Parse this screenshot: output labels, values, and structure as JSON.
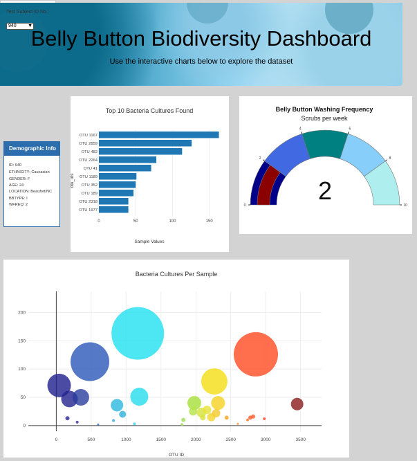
{
  "header": {
    "title": "Belly Button Biodiversity Dashboard",
    "subtitle": "Use the interactive charts below to explore the dataset"
  },
  "selector": {
    "label": "Test Subject ID No.:",
    "value": "940"
  },
  "demographic": {
    "title": "Demographic Info",
    "lines": [
      "ID: 940",
      "ETHNICITY: Caucasian",
      "GENDER: F",
      "AGE: 24",
      "LOCATION: Beaufort/NC",
      "BBTYPE: I",
      "WFREQ: 2"
    ]
  },
  "colors": {
    "panel_blue": "#2b6dad",
    "bar_blue": "#1f77b4"
  },
  "chart_data": [
    {
      "type": "bar",
      "title": "Top 10 Bacteria Cultures Found",
      "xlabel": "Sample Values",
      "ylabel": "otu_ids",
      "orientation": "horizontal",
      "categories": [
        "OTU 1167",
        "OTU 2859",
        "OTU 482",
        "OTU 2264",
        "OTU 41",
        "OTU 1189",
        "OTU 352",
        "OTU 189",
        "OTU 2318",
        "OTU 1977"
      ],
      "values": [
        163,
        126,
        113,
        78,
        71,
        51,
        50,
        47,
        40,
        40
      ],
      "xticks": [
        "0",
        "50",
        "100",
        "150"
      ],
      "xlim": [
        0,
        170
      ]
    },
    {
      "type": "gauge",
      "title": "Belly Button Washing Frequency",
      "subtitle": "Scrubs per week",
      "value": 2,
      "range": [
        0,
        10
      ],
      "ticks": [
        "0",
        "2",
        "4",
        "6",
        "8",
        "10"
      ],
      "step_colors": [
        "#00008b",
        "#4169e1",
        "#008080",
        "#87cefa",
        "#afeeee"
      ],
      "bar_color": "#8b0000"
    },
    {
      "type": "scatter",
      "title": "Bacteria Cultures Per Sample",
      "xlabel": "OTU ID",
      "xlim": [
        -400,
        3800
      ],
      "ylim": [
        -10,
        225
      ],
      "xticks": [
        0,
        500,
        1000,
        1500,
        2000,
        2500,
        3000,
        3500
      ],
      "yticks": [
        0,
        50,
        100,
        150,
        200
      ],
      "points": [
        {
          "x": 41,
          "y": 71,
          "r": 17,
          "color": "#1e1e8c"
        },
        {
          "x": 189,
          "y": 47,
          "r": 12,
          "color": "#22228f"
        },
        {
          "x": 352,
          "y": 50,
          "r": 12,
          "color": "#2a3d9e"
        },
        {
          "x": 482,
          "y": 113,
          "r": 28,
          "color": "#2a57b8"
        },
        {
          "x": 1167,
          "y": 163,
          "r": 38,
          "color": "#21e0f0"
        },
        {
          "x": 1189,
          "y": 51,
          "r": 13,
          "color": "#27dcee"
        },
        {
          "x": 870,
          "y": 36,
          "r": 9,
          "color": "#2bb8e0"
        },
        {
          "x": 950,
          "y": 20,
          "r": 5,
          "color": "#2fb0da"
        },
        {
          "x": 2318,
          "y": 40,
          "r": 10,
          "color": "#f5d21f"
        },
        {
          "x": 2264,
          "y": 78,
          "r": 19,
          "color": "#f3dd13"
        },
        {
          "x": 2859,
          "y": 126,
          "r": 32,
          "color": "#ff4b22"
        },
        {
          "x": 1977,
          "y": 40,
          "r": 10,
          "color": "#a8e03a"
        },
        {
          "x": 3450,
          "y": 38,
          "r": 9,
          "color": "#8b1a1a"
        },
        {
          "x": 1960,
          "y": 25,
          "r": 6,
          "color": "#b5e34a"
        },
        {
          "x": 2080,
          "y": 23,
          "r": 7,
          "color": "#d6e339"
        },
        {
          "x": 2160,
          "y": 28,
          "r": 6,
          "color": "#e7e236"
        },
        {
          "x": 2220,
          "y": 15,
          "r": 6,
          "color": "#f2d62a"
        },
        {
          "x": 2290,
          "y": 22,
          "r": 6,
          "color": "#f4c92c"
        },
        {
          "x": 2100,
          "y": 14,
          "r": 4,
          "color": "#d8e23c"
        },
        {
          "x": 2440,
          "y": 14,
          "r": 3,
          "color": "#f5a623"
        },
        {
          "x": 2780,
          "y": 14,
          "r": 3,
          "color": "#ff5a2a"
        },
        {
          "x": 2820,
          "y": 16,
          "r": 3,
          "color": "#ff5a2a"
        },
        {
          "x": 2740,
          "y": 10,
          "r": 2,
          "color": "#ff6a2a"
        },
        {
          "x": 2980,
          "y": 12,
          "r": 2,
          "color": "#ff4a2a"
        },
        {
          "x": 160,
          "y": 13,
          "r": 3,
          "color": "#2a2a9a"
        },
        {
          "x": 300,
          "y": 6,
          "r": 2,
          "color": "#2a2a9a"
        },
        {
          "x": 820,
          "y": 9,
          "r": 2,
          "color": "#30a0e0"
        },
        {
          "x": 1820,
          "y": 10,
          "r": 3,
          "color": "#9edc55"
        },
        {
          "x": 1800,
          "y": 2,
          "r": 2,
          "color": "#9edc55"
        },
        {
          "x": 1120,
          "y": 3,
          "r": 2,
          "color": "#2ad0e8"
        },
        {
          "x": 600,
          "y": 2,
          "r": 1.5,
          "color": "#2a6bc0"
        },
        {
          "x": 2600,
          "y": 3,
          "r": 1.5,
          "color": "#f58a25"
        }
      ]
    }
  ]
}
